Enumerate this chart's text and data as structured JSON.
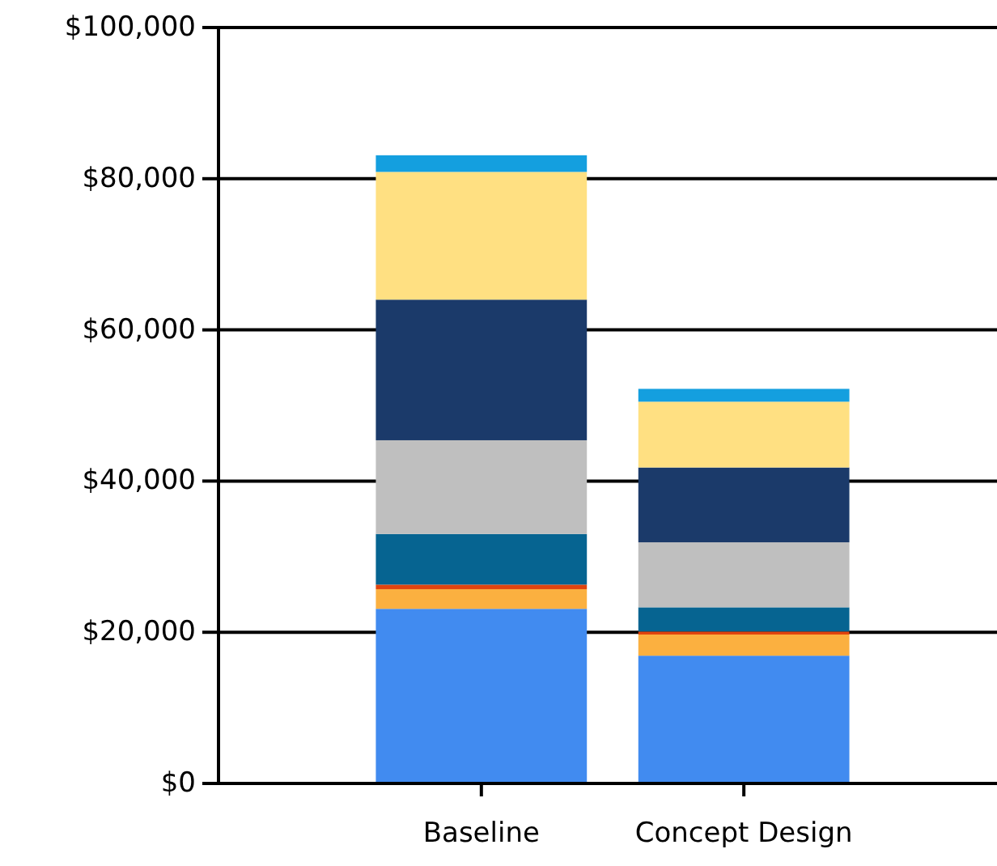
{
  "chart_data": {
    "type": "bar",
    "stacked": true,
    "categories": [
      "Baseline",
      "Concept Design"
    ],
    "series": [
      {
        "color": "#418bf0",
        "values": [
          23100,
          16900
        ]
      },
      {
        "color": "#fbb040",
        "values": [
          2600,
          2800
        ]
      },
      {
        "color": "#e0440e",
        "values": [
          600,
          400
        ]
      },
      {
        "color": "#066491",
        "values": [
          6700,
          3200
        ]
      },
      {
        "color": "#bfbfbf",
        "values": [
          12400,
          8600
        ]
      },
      {
        "color": "#1b3a6a",
        "values": [
          18600,
          9900
        ]
      },
      {
        "color": "#ffe082",
        "values": [
          16900,
          8700
        ]
      },
      {
        "color": "#149fdf",
        "values": [
          2200,
          1700
        ]
      }
    ],
    "ylim": [
      0,
      100000
    ],
    "yticks": [
      {
        "value": 0,
        "label": "$0"
      },
      {
        "value": 20000,
        "label": "$20,000"
      },
      {
        "value": 40000,
        "label": "$40,000"
      },
      {
        "value": 60000,
        "label": "$60,000"
      },
      {
        "value": 80000,
        "label": "$80,000"
      },
      {
        "value": 100000,
        "label": "$100,000"
      }
    ],
    "grid": "y"
  }
}
